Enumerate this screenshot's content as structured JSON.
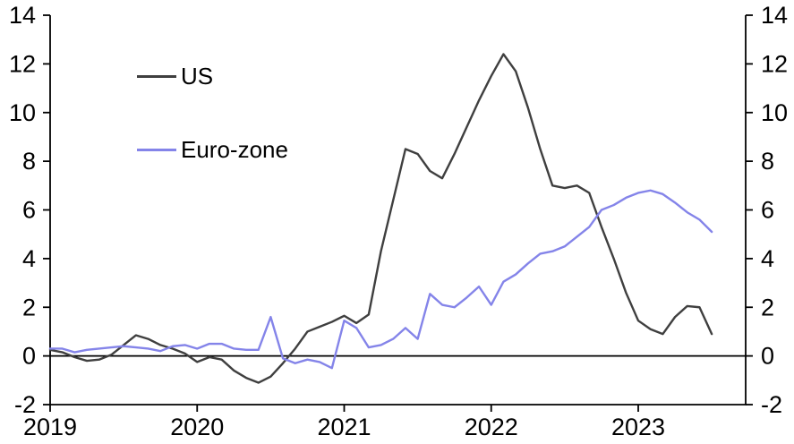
{
  "chart_data": {
    "type": "line",
    "title": "",
    "xlabel": "",
    "ylabel": "",
    "x_unit": "month",
    "x_start": "2019-01",
    "x_end": "2023-07",
    "x_tick_labels": [
      "2019",
      "2020",
      "2021",
      "2022",
      "2023"
    ],
    "y_ticks": [
      -2,
      0,
      2,
      4,
      6,
      8,
      10,
      12,
      14
    ],
    "ylim": [
      -2,
      14
    ],
    "dual_axis": true,
    "zero_line": true,
    "grid": false,
    "legend_position": "inside-top-left",
    "axis_color": "#000000",
    "series": [
      {
        "name": "US",
        "color": "#3f3f3f",
        "values": [
          0.25,
          0.15,
          -0.05,
          -0.2,
          -0.15,
          0.05,
          0.45,
          0.85,
          0.7,
          0.45,
          0.3,
          0.1,
          -0.25,
          -0.05,
          -0.15,
          -0.6,
          -0.9,
          -1.1,
          -0.85,
          -0.3,
          0.3,
          1.0,
          1.2,
          1.4,
          1.65,
          1.35,
          1.7,
          4.3,
          6.4,
          8.5,
          8.3,
          7.6,
          7.3,
          8.3,
          9.4,
          10.5,
          11.5,
          12.4,
          11.7,
          10.2,
          8.5,
          7.0,
          6.9,
          7.0,
          6.7,
          5.3,
          4.0,
          2.6,
          1.45,
          1.1,
          0.9,
          1.6,
          2.05,
          2.0,
          0.9
        ]
      },
      {
        "name": "Euro-zone",
        "color": "#8484e9",
        "values": [
          0.3,
          0.3,
          0.15,
          0.25,
          0.3,
          0.35,
          0.4,
          0.35,
          0.3,
          0.2,
          0.4,
          0.45,
          0.3,
          0.5,
          0.5,
          0.3,
          0.25,
          0.25,
          1.6,
          -0.1,
          -0.3,
          -0.15,
          -0.25,
          -0.5,
          1.45,
          1.15,
          0.35,
          0.45,
          0.7,
          1.15,
          0.7,
          2.55,
          2.1,
          2.0,
          2.4,
          2.85,
          2.1,
          3.05,
          3.35,
          3.8,
          4.2,
          4.3,
          4.5,
          4.9,
          5.3,
          6.0,
          6.2,
          6.5,
          6.7,
          6.8,
          6.65,
          6.3,
          5.9,
          5.6,
          5.1
        ]
      }
    ]
  }
}
